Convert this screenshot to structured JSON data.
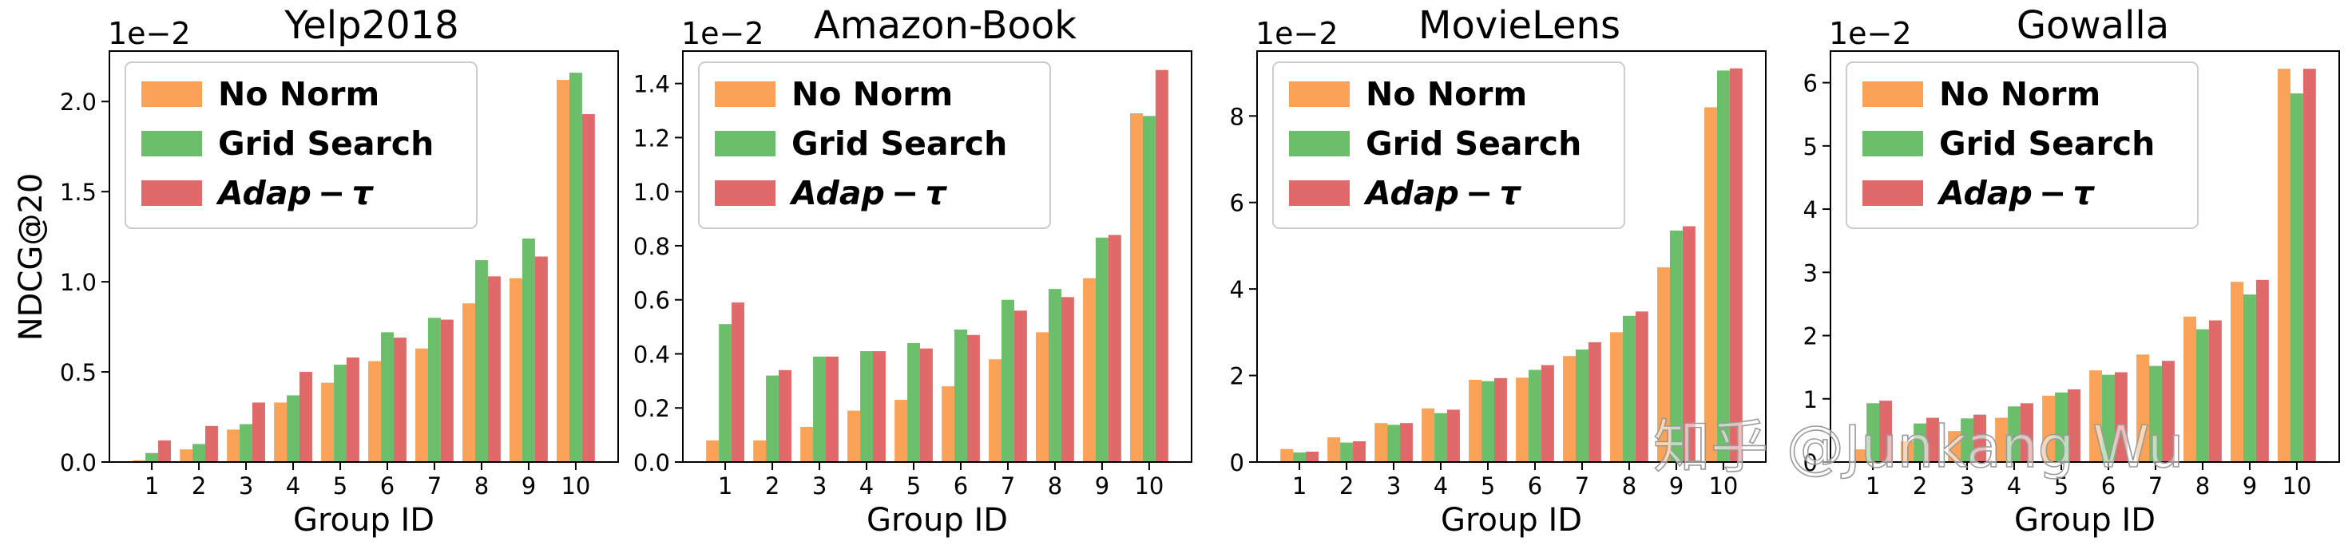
{
  "figure": {
    "y_label": "NDCG@20",
    "x_label": "Group ID",
    "exponent_label": "1e−2",
    "watermark": "知乎 @Junkang Wu"
  },
  "legend": [
    "No Norm",
    "Grid Search",
    "Adap − τ"
  ],
  "colors": {
    "No Norm": "#f9a258",
    "Grid Search": "#6bbf6b",
    "Adap - tau": "#e06a6a"
  },
  "chart_data": [
    {
      "type": "bar",
      "title": "Yelp2018",
      "xlabel": "Group ID",
      "ylabel": "NDCG@20",
      "y_unit": "1e-2",
      "ylim": [
        0,
        2.28
      ],
      "yticks": [
        0.0,
        0.5,
        1.0,
        1.5,
        2.0
      ],
      "ytick_labels": [
        "0.0",
        "0.5",
        "1.0",
        "1.5",
        "2.0"
      ],
      "categories": [
        "1",
        "2",
        "3",
        "4",
        "5",
        "6",
        "7",
        "8",
        "9",
        "10"
      ],
      "series": [
        {
          "name": "No Norm",
          "values": [
            0.01,
            0.07,
            0.18,
            0.33,
            0.44,
            0.56,
            0.63,
            0.88,
            1.02,
            2.12
          ]
        },
        {
          "name": "Grid Search",
          "values": [
            0.05,
            0.1,
            0.21,
            0.37,
            0.54,
            0.72,
            0.8,
            1.12,
            1.24,
            2.16
          ]
        },
        {
          "name": "Adap - tau",
          "values": [
            0.12,
            0.2,
            0.33,
            0.5,
            0.58,
            0.69,
            0.79,
            1.03,
            1.14,
            1.93
          ]
        }
      ]
    },
    {
      "type": "bar",
      "title": "Amazon-Book",
      "xlabel": "Group ID",
      "ylabel": "",
      "y_unit": "1e-2",
      "ylim": [
        0,
        1.52
      ],
      "yticks": [
        0.0,
        0.2,
        0.4,
        0.6,
        0.8,
        1.0,
        1.2,
        1.4
      ],
      "ytick_labels": [
        "0.0",
        "0.2",
        "0.4",
        "0.6",
        "0.8",
        "1.0",
        "1.2",
        "1.4"
      ],
      "categories": [
        "1",
        "2",
        "3",
        "4",
        "5",
        "6",
        "7",
        "8",
        "9",
        "10"
      ],
      "series": [
        {
          "name": "No Norm",
          "values": [
            0.08,
            0.08,
            0.13,
            0.19,
            0.23,
            0.28,
            0.38,
            0.48,
            0.68,
            1.29
          ]
        },
        {
          "name": "Grid Search",
          "values": [
            0.51,
            0.32,
            0.39,
            0.41,
            0.44,
            0.49,
            0.6,
            0.64,
            0.83,
            1.28
          ]
        },
        {
          "name": "Adap - tau",
          "values": [
            0.59,
            0.34,
            0.39,
            0.41,
            0.42,
            0.47,
            0.56,
            0.61,
            0.84,
            1.45
          ]
        }
      ]
    },
    {
      "type": "bar",
      "title": "MovieLens",
      "xlabel": "Group ID",
      "ylabel": "",
      "y_unit": "1e-2",
      "ylim": [
        0,
        9.5
      ],
      "yticks": [
        0,
        2,
        4,
        6,
        8
      ],
      "ytick_labels": [
        "0",
        "2",
        "4",
        "6",
        "8"
      ],
      "categories": [
        "1",
        "2",
        "3",
        "4",
        "5",
        "6",
        "7",
        "8",
        "9",
        "10"
      ],
      "series": [
        {
          "name": "No Norm",
          "values": [
            0.3,
            0.57,
            0.9,
            1.24,
            1.9,
            1.95,
            2.45,
            3.0,
            4.5,
            8.2
          ]
        },
        {
          "name": "Grid Search",
          "values": [
            0.22,
            0.45,
            0.86,
            1.13,
            1.87,
            2.13,
            2.6,
            3.38,
            5.35,
            9.05
          ]
        },
        {
          "name": "Adap - tau",
          "values": [
            0.24,
            0.48,
            0.9,
            1.21,
            1.94,
            2.24,
            2.77,
            3.48,
            5.45,
            9.1
          ]
        }
      ]
    },
    {
      "type": "bar",
      "title": "Gowalla",
      "xlabel": "Group ID",
      "ylabel": "",
      "y_unit": "1e-2",
      "ylim": [
        0,
        6.5
      ],
      "yticks": [
        0,
        1,
        2,
        3,
        4,
        5,
        6
      ],
      "ytick_labels": [
        "0",
        "1",
        "2",
        "3",
        "4",
        "5",
        "6"
      ],
      "categories": [
        "1",
        "2",
        "3",
        "4",
        "5",
        "6",
        "7",
        "8",
        "9",
        "10"
      ],
      "series": [
        {
          "name": "No Norm",
          "values": [
            0.2,
            0.33,
            0.49,
            0.7,
            1.05,
            1.45,
            1.7,
            2.3,
            2.85,
            6.22
          ]
        },
        {
          "name": "Grid Search",
          "values": [
            0.93,
            0.61,
            0.69,
            0.88,
            1.1,
            1.38,
            1.52,
            2.1,
            2.65,
            5.83
          ]
        },
        {
          "name": "Adap - tau",
          "values": [
            0.97,
            0.7,
            0.75,
            0.93,
            1.15,
            1.42,
            1.6,
            2.24,
            2.88,
            6.22
          ]
        }
      ]
    }
  ]
}
